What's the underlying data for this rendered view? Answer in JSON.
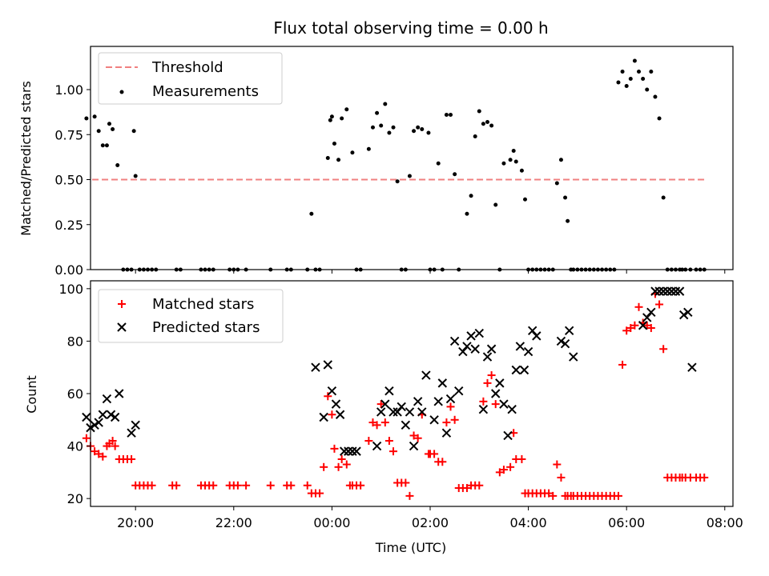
{
  "chart_data": [
    {
      "type": "scatter",
      "title": "Flux total observing time = 0.00 h",
      "xlabel": "",
      "ylabel": "Matched/Predicted stars",
      "xlim": [
        "19:05",
        "08:10"
      ],
      "ylim": [
        0,
        1.24
      ],
      "yticks": [
        "0.00",
        "0.25",
        "0.50",
        "0.75",
        "1.00"
      ],
      "legend_position": "top-left",
      "legend": [
        "Threshold",
        "Measurements"
      ],
      "threshold": {
        "name": "Threshold",
        "y": 0.5,
        "x_start": "19:07",
        "x_end": "07:35",
        "color": "#f08080",
        "style": "dashed"
      },
      "series": [
        {
          "name": "Measurements",
          "color": "#000000",
          "marker": "dot",
          "x": [
            "19:00",
            "19:10",
            "19:15",
            "19:20",
            "19:25",
            "19:28",
            "19:32",
            "19:38",
            "19:45",
            "19:50",
            "19:58",
            "20:00",
            "19:55",
            "20:05",
            "20:10",
            "20:15",
            "20:20",
            "20:25",
            "20:50",
            "20:55",
            "21:20",
            "21:25",
            "21:30",
            "21:35",
            "21:55",
            "22:00",
            "22:05",
            "22:15",
            "22:45",
            "23:05",
            "23:10",
            "23:30",
            "23:35",
            "23:40",
            "23:45",
            "23:55",
            "23:58",
            "00:00",
            "00:03",
            "00:08",
            "00:12",
            "00:18",
            "00:25",
            "00:30",
            "00:35",
            "00:45",
            "00:50",
            "00:55",
            "01:00",
            "01:05",
            "01:10",
            "01:15",
            "01:20",
            "01:25",
            "01:30",
            "01:35",
            "01:40",
            "01:45",
            "01:50",
            "01:58",
            "02:00",
            "02:05",
            "02:10",
            "02:15",
            "02:20",
            "02:25",
            "02:30",
            "02:35",
            "02:45",
            "02:50",
            "02:55",
            "03:00",
            "03:05",
            "03:10",
            "03:15",
            "03:20",
            "03:25",
            "03:30",
            "03:38",
            "03:42",
            "03:45",
            "03:52",
            "03:56",
            "04:00",
            "04:05",
            "04:10",
            "04:15",
            "04:20",
            "04:25",
            "04:30",
            "04:35",
            "04:40",
            "04:45",
            "04:48",
            "04:52",
            "04:55",
            "05:00",
            "05:05",
            "05:10",
            "05:15",
            "05:20",
            "05:25",
            "05:30",
            "05:35",
            "05:40",
            "05:45",
            "05:50",
            "05:55",
            "06:00",
            "06:05",
            "06:10",
            "06:15",
            "06:20",
            "06:25",
            "06:30",
            "06:35",
            "06:40",
            "06:45",
            "06:50",
            "06:55",
            "07:00",
            "07:05",
            "07:08",
            "07:12",
            "07:18",
            "07:25",
            "07:30",
            "07:35"
          ],
          "y": [
            0.84,
            0.85,
            0.77,
            0.69,
            0.69,
            0.81,
            0.78,
            0.58,
            0,
            0,
            0.77,
            0.52,
            0,
            0,
            0,
            0,
            0,
            0,
            0,
            0,
            0,
            0,
            0,
            0,
            0,
            0,
            0,
            0,
            0,
            0,
            0,
            0,
            0.31,
            0,
            0,
            0.62,
            0.83,
            0.85,
            0.7,
            0.61,
            0.84,
            0.89,
            0.65,
            0,
            0,
            0.67,
            0.79,
            0.87,
            0.8,
            0.92,
            0.76,
            0.79,
            0.49,
            0,
            0,
            0.52,
            0.77,
            0.79,
            0.78,
            0.76,
            0,
            0,
            0.59,
            0,
            0.86,
            0.86,
            0.53,
            0,
            0.31,
            0.41,
            0.74,
            0.88,
            0.81,
            0.82,
            0.8,
            0.36,
            0,
            0.59,
            0.61,
            0.66,
            0.6,
            0.55,
            0.39,
            0,
            0,
            0,
            0,
            0,
            0,
            0,
            0.48,
            0.61,
            0.4,
            0.27,
            0,
            0,
            0,
            0,
            0,
            0,
            0,
            0,
            0,
            0,
            0,
            0,
            1.04,
            1.1,
            1.02,
            1.06,
            1.16,
            1.1,
            1.06,
            1.0,
            1.1,
            0.96,
            0.84,
            0.4,
            0,
            0,
            0,
            0,
            0,
            0,
            0,
            0,
            0,
            0
          ]
        }
      ]
    },
    {
      "type": "scatter",
      "title": "",
      "xlabel": "Time (UTC)",
      "ylabel": "Count",
      "xlim": [
        "19:05",
        "08:10"
      ],
      "ylim": [
        17,
        103
      ],
      "xticks": [
        "20:00",
        "22:00",
        "00:00",
        "02:00",
        "04:00",
        "06:00",
        "08:00"
      ],
      "yticks": [
        "20",
        "40",
        "60",
        "80",
        "100"
      ],
      "legend_position": "top-left",
      "legend": [
        "Matched stars",
        "Predicted stars"
      ],
      "series": [
        {
          "name": "Matched stars",
          "color": "#ff0000",
          "marker": "plus",
          "x": [
            "19:00",
            "19:05",
            "19:10",
            "19:15",
            "19:20",
            "19:25",
            "19:28",
            "19:32",
            "19:35",
            "19:40",
            "19:45",
            "19:50",
            "19:55",
            "20:00",
            "20:05",
            "20:10",
            "20:15",
            "20:20",
            "20:45",
            "20:50",
            "21:20",
            "21:25",
            "21:30",
            "21:35",
            "21:55",
            "22:00",
            "22:05",
            "22:15",
            "22:45",
            "23:05",
            "23:10",
            "23:30",
            "23:35",
            "23:40",
            "23:45",
            "23:50",
            "23:55",
            "00:00",
            "00:03",
            "00:08",
            "00:12",
            "00:18",
            "00:22",
            "00:25",
            "00:30",
            "00:35",
            "00:45",
            "00:50",
            "00:55",
            "01:00",
            "01:05",
            "01:10",
            "01:15",
            "01:20",
            "01:25",
            "01:30",
            "01:35",
            "01:40",
            "01:45",
            "01:50",
            "01:58",
            "02:00",
            "02:05",
            "02:10",
            "02:15",
            "02:20",
            "02:25",
            "02:30",
            "02:35",
            "02:40",
            "02:45",
            "02:50",
            "02:55",
            "03:00",
            "03:05",
            "03:10",
            "03:15",
            "03:20",
            "03:25",
            "03:30",
            "03:38",
            "03:42",
            "03:45",
            "03:52",
            "03:56",
            "04:00",
            "04:05",
            "04:10",
            "04:15",
            "04:20",
            "04:25",
            "04:30",
            "04:35",
            "04:40",
            "04:45",
            "04:48",
            "04:52",
            "04:55",
            "05:00",
            "05:05",
            "05:10",
            "05:15",
            "05:20",
            "05:25",
            "05:30",
            "05:35",
            "05:40",
            "05:45",
            "05:50",
            "05:55",
            "06:00",
            "06:05",
            "06:10",
            "06:15",
            "06:20",
            "06:25",
            "06:30",
            "06:35",
            "06:40",
            "06:45",
            "06:50",
            "06:55",
            "07:00",
            "07:05",
            "07:08",
            "07:12",
            "07:18",
            "07:25",
            "07:30",
            "07:35"
          ],
          "y": [
            43,
            40,
            38,
            37,
            36,
            40,
            41,
            42,
            40,
            35,
            35,
            35,
            35,
            25,
            25,
            25,
            25,
            25,
            25,
            25,
            25,
            25,
            25,
            25,
            25,
            25,
            25,
            25,
            25,
            25,
            25,
            25,
            22,
            22,
            22,
            32,
            59,
            52,
            39,
            32,
            35,
            33,
            25,
            25,
            25,
            25,
            42,
            49,
            48,
            56,
            49,
            42,
            38,
            26,
            26,
            26,
            21,
            44,
            43,
            52,
            37,
            37,
            37,
            34,
            34,
            49,
            55,
            50,
            24,
            24,
            24,
            25,
            25,
            25,
            57,
            64,
            67,
            56,
            30,
            31,
            32,
            45,
            35,
            35,
            22,
            22,
            22,
            22,
            22,
            22,
            22,
            21,
            33,
            28,
            21,
            21,
            21,
            21,
            21,
            21,
            21,
            21,
            21,
            21,
            21,
            21,
            21,
            21,
            21,
            71,
            84,
            85,
            86,
            93,
            87,
            86,
            85,
            98,
            94,
            77,
            28,
            28,
            28,
            28,
            28,
            28,
            28,
            28,
            28,
            28
          ]
        },
        {
          "name": "Predicted stars",
          "color": "#000000",
          "marker": "x",
          "x": [
            "19:00",
            "19:05",
            "19:10",
            "19:15",
            "19:20",
            "19:25",
            "19:30",
            "19:35",
            "19:40",
            "19:55",
            "20:00",
            "23:40",
            "23:50",
            "23:55",
            "00:00",
            "00:05",
            "00:10",
            "00:15",
            "00:20",
            "00:25",
            "00:30",
            "00:55",
            "01:00",
            "01:05",
            "01:10",
            "01:15",
            "01:20",
            "01:25",
            "01:30",
            "01:35",
            "01:40",
            "01:45",
            "01:50",
            "01:55",
            "02:05",
            "02:10",
            "02:15",
            "02:20",
            "02:25",
            "02:30",
            "02:35",
            "02:40",
            "02:45",
            "02:50",
            "02:55",
            "03:00",
            "03:05",
            "03:10",
            "03:15",
            "03:20",
            "03:25",
            "03:30",
            "03:35",
            "03:40",
            "03:45",
            "03:50",
            "03:55",
            "04:00",
            "04:05",
            "04:10",
            "04:40",
            "04:45",
            "04:50",
            "04:55",
            "06:20",
            "06:25",
            "06:30",
            "06:35",
            "06:40",
            "06:45",
            "06:50",
            "06:55",
            "07:00",
            "07:05",
            "07:10",
            "07:15",
            "07:20"
          ],
          "y": [
            51,
            47,
            48,
            49,
            52,
            58,
            52,
            51,
            60,
            45,
            48,
            70,
            51,
            71,
            61,
            56,
            52,
            38,
            38,
            38,
            38,
            40,
            53,
            56,
            61,
            53,
            53,
            55,
            48,
            53,
            40,
            57,
            53,
            67,
            50,
            57,
            64,
            45,
            58,
            80,
            61,
            76,
            78,
            82,
            77,
            83,
            54,
            74,
            77,
            60,
            64,
            56,
            44,
            54,
            69,
            78,
            69,
            76,
            84,
            82,
            80,
            79,
            84,
            74,
            86,
            89,
            91,
            99,
            99,
            99,
            99,
            99,
            99,
            99,
            90,
            91,
            70
          ]
        }
      ]
    }
  ]
}
